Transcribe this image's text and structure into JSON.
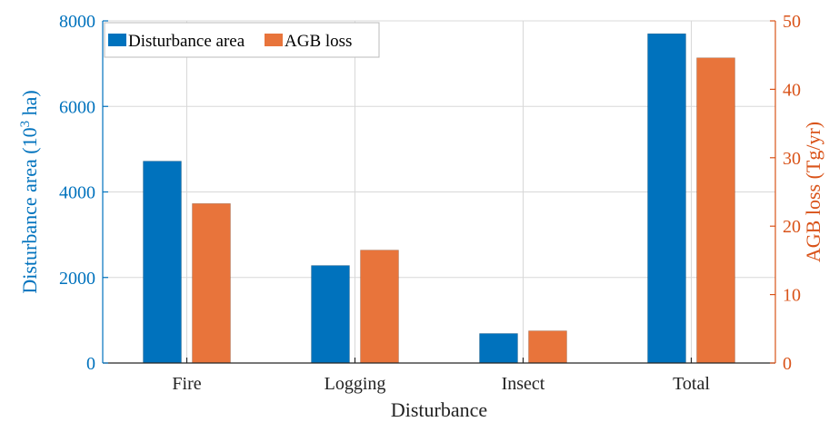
{
  "chart_data": {
    "type": "bar",
    "categories": [
      "Fire",
      "Logging",
      "Insect",
      "Total"
    ],
    "series": [
      {
        "name": "Disturbance area",
        "axis": "left",
        "color": "#0072BD",
        "values": [
          4720,
          2280,
          690,
          7700
        ]
      },
      {
        "name": "AGB loss",
        "axis": "right",
        "color": "#E8743B",
        "values": [
          23.3,
          16.5,
          4.7,
          44.6
        ]
      }
    ],
    "xlabel": "Disturbance",
    "ylabel_left": "Disturbance area (10",
    "ylabel_left_sup": "3",
    "ylabel_left_tail": " ha)",
    "ylabel_right": "AGB loss (Tg/yr)",
    "ylim_left": [
      0,
      8000
    ],
    "ylim_right": [
      0,
      50
    ],
    "yticks_left": [
      0,
      2000,
      4000,
      6000,
      8000
    ],
    "yticks_right": [
      0,
      10,
      20,
      30,
      40,
      50
    ],
    "left_axis_color": "#0072BD",
    "right_axis_color": "#D95319",
    "grid": true,
    "legend_position": "top-left"
  }
}
